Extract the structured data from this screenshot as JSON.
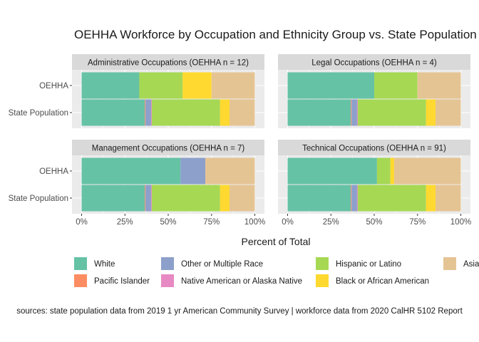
{
  "chart_data": {
    "type": "bar",
    "orientation": "horizontal",
    "stacked": true,
    "title": "OEHHA Workforce by Occupation and Ethnicity Group vs. State Population",
    "xlabel": "Percent of Total",
    "ylabel": "",
    "xlim": [
      0,
      100
    ],
    "x_ticks": [
      "0%",
      "25%",
      "50%",
      "75%",
      "100%"
    ],
    "categories": [
      "OEHHA",
      "State Population"
    ],
    "grid": true,
    "legend_position": "bottom",
    "caption": "sources: state population data from 2019 1 yr American Community Survey  |  workforce data from 2020 CalHR 5102 Report",
    "groups": [
      {
        "name": "White",
        "color": "#66C2A5"
      },
      {
        "name": "Pacific Islander",
        "color": "#FC8D62"
      },
      {
        "name": "Other or Multiple Race",
        "color": "#8DA0CB"
      },
      {
        "name": "Native American or Alaska Native",
        "color": "#E78AC3"
      },
      {
        "name": "Hispanic or Latino",
        "color": "#A6D854"
      },
      {
        "name": "Black or African American",
        "color": "#FFD92F"
      },
      {
        "name": "Asian",
        "color": "#E5C494"
      }
    ],
    "legend_order": [
      "White",
      "Other or Multiple Race",
      "Hispanic or Latino",
      "Asian",
      "Pacific Islander",
      "Native American or Alaska Native",
      "Black or African American"
    ],
    "panels": [
      {
        "title": "Administrative Occupations (OEHHA n = 12)",
        "bars": [
          {
            "category": "OEHHA",
            "values": {
              "White": 33.3,
              "Pacific Islander": 0,
              "Other or Multiple Race": 0,
              "Native American or Alaska Native": 0,
              "Hispanic or Latino": 25.0,
              "Black or African American": 16.7,
              "Asian": 25.0
            }
          },
          {
            "category": "State Population",
            "values": {
              "White": 36.5,
              "Pacific Islander": 0.4,
              "Other or Multiple Race": 3.2,
              "Native American or Alaska Native": 0.4,
              "Hispanic or Latino": 39.4,
              "Black or African American": 5.5,
              "Asian": 14.6
            }
          }
        ]
      },
      {
        "title": "Legal Occupations (OEHHA n = 4)",
        "bars": [
          {
            "category": "OEHHA",
            "values": {
              "White": 50.0,
              "Pacific Islander": 0,
              "Other or Multiple Race": 0,
              "Native American or Alaska Native": 0,
              "Hispanic or Latino": 25.0,
              "Black or African American": 0,
              "Asian": 25.0
            }
          },
          {
            "category": "State Population",
            "values": {
              "White": 36.5,
              "Pacific Islander": 0.4,
              "Other or Multiple Race": 3.2,
              "Native American or Alaska Native": 0.4,
              "Hispanic or Latino": 39.4,
              "Black or African American": 5.5,
              "Asian": 14.6
            }
          }
        ]
      },
      {
        "title": "Management Occupations (OEHHA n = 7)",
        "bars": [
          {
            "category": "OEHHA",
            "values": {
              "White": 57.1,
              "Pacific Islander": 0,
              "Other or Multiple Race": 14.3,
              "Native American or Alaska Native": 0,
              "Hispanic or Latino": 0,
              "Black or African American": 0,
              "Asian": 28.6
            }
          },
          {
            "category": "State Population",
            "values": {
              "White": 36.5,
              "Pacific Islander": 0.4,
              "Other or Multiple Race": 3.2,
              "Native American or Alaska Native": 0.4,
              "Hispanic or Latino": 39.4,
              "Black or African American": 5.5,
              "Asian": 14.6
            }
          }
        ]
      },
      {
        "title": "Technical Occupations (OEHHA n = 91)",
        "bars": [
          {
            "category": "OEHHA",
            "values": {
              "White": 51.6,
              "Pacific Islander": 0,
              "Other or Multiple Race": 0,
              "Native American or Alaska Native": 0,
              "Hispanic or Latino": 7.7,
              "Black or African American": 2.2,
              "Asian": 38.5
            }
          },
          {
            "category": "State Population",
            "values": {
              "White": 36.5,
              "Pacific Islander": 0.4,
              "Other or Multiple Race": 3.2,
              "Native American or Alaska Native": 0.4,
              "Hispanic or Latino": 39.4,
              "Black or African American": 5.5,
              "Asian": 14.6
            }
          }
        ]
      }
    ]
  }
}
